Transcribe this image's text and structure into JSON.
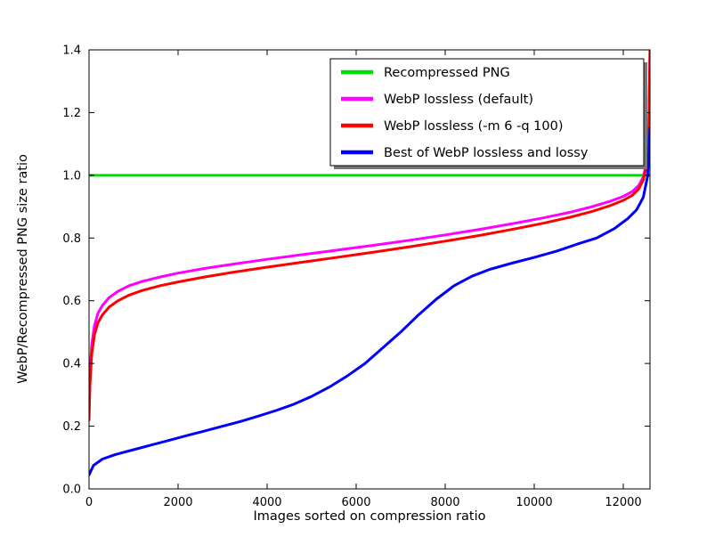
{
  "chart_data": {
    "type": "line",
    "title": "",
    "xlabel": "Images sorted on compression ratio",
    "ylabel": "WebP/Recompressed PNG size ratio",
    "xlim": [
      0,
      12600
    ],
    "ylim": [
      0.0,
      1.4
    ],
    "grid": false,
    "background": "#ffffff",
    "axis_color": "#000000",
    "xticks": [
      {
        "v": 0,
        "label": "0"
      },
      {
        "v": 2000,
        "label": "2000"
      },
      {
        "v": 4000,
        "label": "4000"
      },
      {
        "v": 6000,
        "label": "6000"
      },
      {
        "v": 8000,
        "label": "8000"
      },
      {
        "v": 10000,
        "label": "10000"
      },
      {
        "v": 12000,
        "label": "12000"
      }
    ],
    "yticks": [
      {
        "v": 0.0,
        "label": "0.0"
      },
      {
        "v": 0.2,
        "label": "0.2"
      },
      {
        "v": 0.4,
        "label": "0.4"
      },
      {
        "v": 0.6,
        "label": "0.6"
      },
      {
        "v": 0.8,
        "label": "0.8"
      },
      {
        "v": 1.0,
        "label": "1.0"
      },
      {
        "v": 1.2,
        "label": "1.2"
      },
      {
        "v": 1.4,
        "label": "1.4"
      }
    ],
    "legend": {
      "position": "upper center-right",
      "shadow": true,
      "border_color": "#000000",
      "shadow_color": "#777777",
      "entries": [
        {
          "label": "Recompressed PNG",
          "color": "#00dd00"
        },
        {
          "label": "WebP lossless (default)",
          "color": "#ff00ff"
        },
        {
          "label": "WebP lossless (-m 6 -q 100)",
          "color": "#ff0000"
        },
        {
          "label": "Best of WebP lossless and lossy",
          "color": "#0000ff"
        }
      ]
    },
    "series": [
      {
        "name": "Recompressed PNG",
        "color": "#00dd00",
        "x": [
          0,
          12600
        ],
        "y": [
          1.0,
          1.0
        ]
      },
      {
        "name": "WebP lossless (default)",
        "color": "#ff00ff",
        "x": [
          0,
          20,
          60,
          120,
          200,
          300,
          450,
          650,
          900,
          1200,
          1600,
          2000,
          2600,
          3200,
          4000,
          4800,
          5600,
          6400,
          7200,
          8000,
          8800,
          9600,
          10200,
          10800,
          11300,
          11700,
          12000,
          12200,
          12350,
          12450,
          12520,
          12570,
          12600
        ],
        "y": [
          0.24,
          0.36,
          0.46,
          0.52,
          0.56,
          0.585,
          0.61,
          0.63,
          0.648,
          0.662,
          0.676,
          0.688,
          0.703,
          0.716,
          0.732,
          0.747,
          0.762,
          0.777,
          0.793,
          0.81,
          0.828,
          0.848,
          0.864,
          0.882,
          0.9,
          0.917,
          0.933,
          0.948,
          0.968,
          0.995,
          1.04,
          1.12,
          1.4
        ]
      },
      {
        "name": "WebP lossless (-m 6 -q 100)",
        "color": "#ff0000",
        "x": [
          0,
          20,
          60,
          120,
          200,
          300,
          450,
          650,
          900,
          1200,
          1600,
          2000,
          2600,
          3200,
          4000,
          4800,
          5600,
          6400,
          7200,
          8000,
          8800,
          9600,
          10200,
          10800,
          11300,
          11700,
          12000,
          12200,
          12350,
          12450,
          12520,
          12570,
          12600
        ],
        "y": [
          0.22,
          0.33,
          0.43,
          0.49,
          0.53,
          0.555,
          0.58,
          0.6,
          0.618,
          0.633,
          0.648,
          0.66,
          0.676,
          0.69,
          0.707,
          0.723,
          0.739,
          0.755,
          0.772,
          0.79,
          0.809,
          0.83,
          0.847,
          0.866,
          0.885,
          0.903,
          0.92,
          0.936,
          0.957,
          0.985,
          1.03,
          1.11,
          1.4
        ]
      },
      {
        "name": "Best of WebP lossless and lossy",
        "color": "#0000ff",
        "x": [
          0,
          100,
          300,
          600,
          1000,
          1400,
          1800,
          2200,
          2600,
          3000,
          3400,
          3800,
          4200,
          4600,
          5000,
          5400,
          5800,
          6200,
          6600,
          7000,
          7400,
          7800,
          8200,
          8600,
          9000,
          9500,
          10000,
          10500,
          11000,
          11400,
          11800,
          12100,
          12300,
          12450,
          12550,
          12600
        ],
        "y": [
          0.045,
          0.075,
          0.095,
          0.11,
          0.125,
          0.14,
          0.155,
          0.17,
          0.185,
          0.2,
          0.215,
          0.232,
          0.25,
          0.27,
          0.295,
          0.325,
          0.36,
          0.4,
          0.45,
          0.5,
          0.555,
          0.605,
          0.648,
          0.678,
          0.7,
          0.72,
          0.738,
          0.758,
          0.782,
          0.8,
          0.83,
          0.862,
          0.89,
          0.93,
          1.0,
          1.15
        ]
      }
    ]
  }
}
